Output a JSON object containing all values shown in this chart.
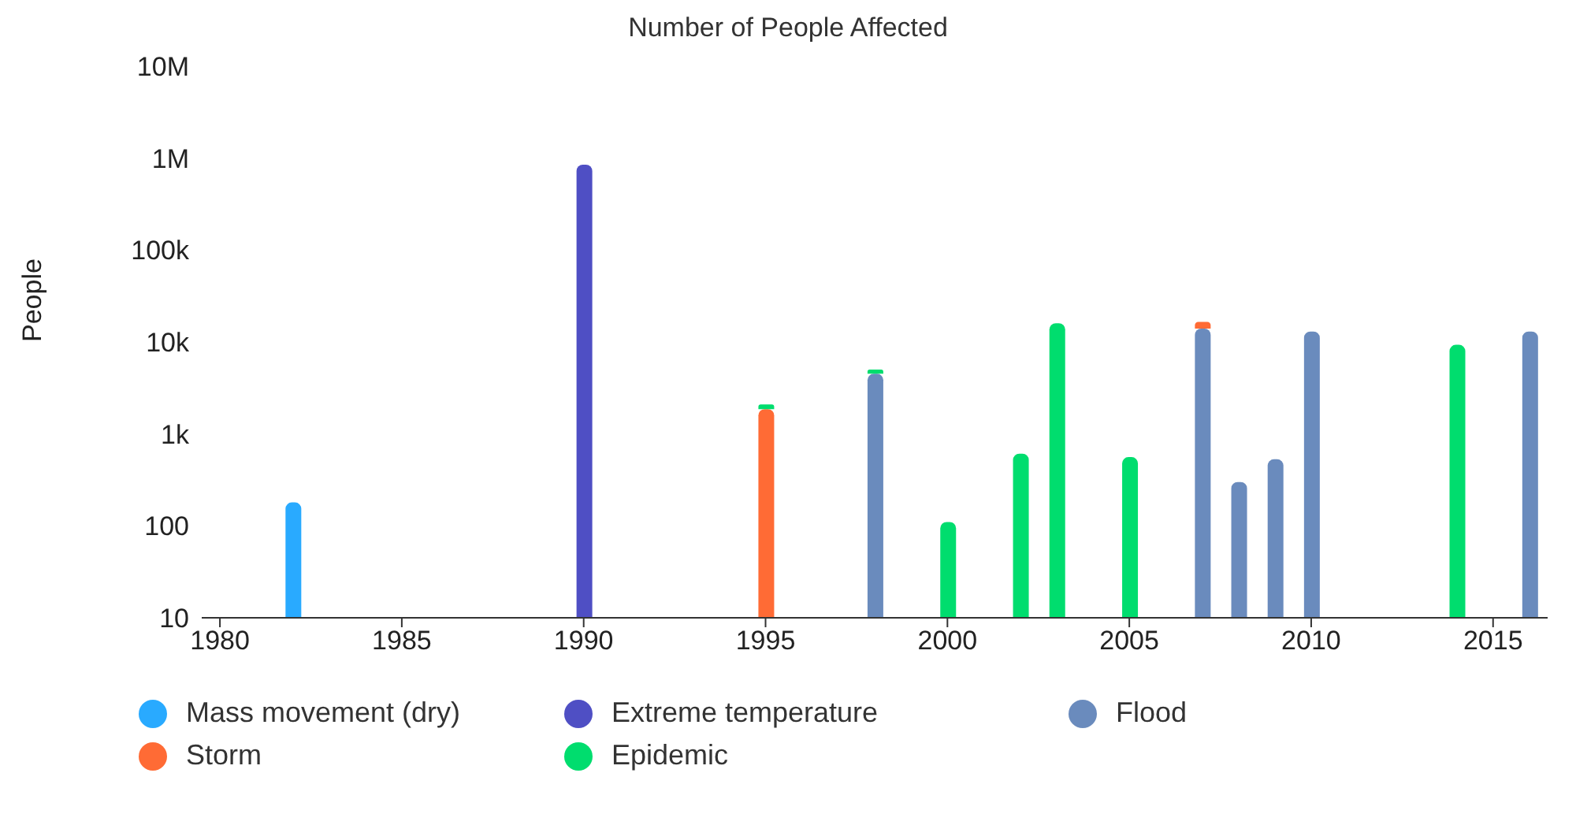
{
  "chart_data": {
    "type": "bar",
    "title": "Number of People Affected",
    "ylabel": "People",
    "stacked": true,
    "log": "y",
    "x": [
      1982,
      1990,
      1995,
      1998,
      2000,
      2002,
      2003,
      2005,
      2007,
      2008,
      2009,
      2010,
      2014,
      2016
    ],
    "series": [
      {
        "name": "Mass movement (dry)",
        "color": "#29aaff",
        "values": [
          170,
          null,
          null,
          null,
          null,
          null,
          null,
          null,
          null,
          null,
          null,
          null,
          null,
          null
        ]
      },
      {
        "name": "Extreme temperature",
        "color": "#4f4fc4",
        "values": [
          null,
          850000,
          null,
          null,
          null,
          null,
          null,
          null,
          null,
          null,
          null,
          null,
          null,
          null
        ]
      },
      {
        "name": "Flood",
        "color": "#6a8bbd",
        "values": [
          null,
          null,
          null,
          4500,
          null,
          null,
          null,
          null,
          14000,
          290,
          520,
          13000,
          null,
          13000
        ]
      },
      {
        "name": "Storm",
        "color": "#ff6b35",
        "values": [
          null,
          null,
          1850,
          null,
          null,
          null,
          null,
          null,
          2500,
          null,
          null,
          null,
          null,
          null
        ]
      },
      {
        "name": "Epidemic",
        "color": "#00dd6e",
        "values": [
          null,
          null,
          230,
          500,
          100,
          600,
          16000,
          550,
          null,
          null,
          null,
          null,
          9300,
          null
        ]
      }
    ],
    "xlim": [
      1979.5,
      2016.5
    ],
    "xticks": [
      1980,
      1985,
      1990,
      1995,
      2000,
      2005,
      2010,
      2015
    ],
    "ylim": [
      10,
      10000000
    ],
    "yticks": [
      10,
      100,
      {
        "value": 1000,
        "label": "1k"
      },
      {
        "value": 10000,
        "label": "10k"
      },
      {
        "value": 100000,
        "label": "100k"
      },
      {
        "value": 1000000,
        "label": "1M"
      },
      {
        "value": 10000000,
        "label": "10M"
      }
    ],
    "grid": false,
    "legend": "bottom"
  }
}
